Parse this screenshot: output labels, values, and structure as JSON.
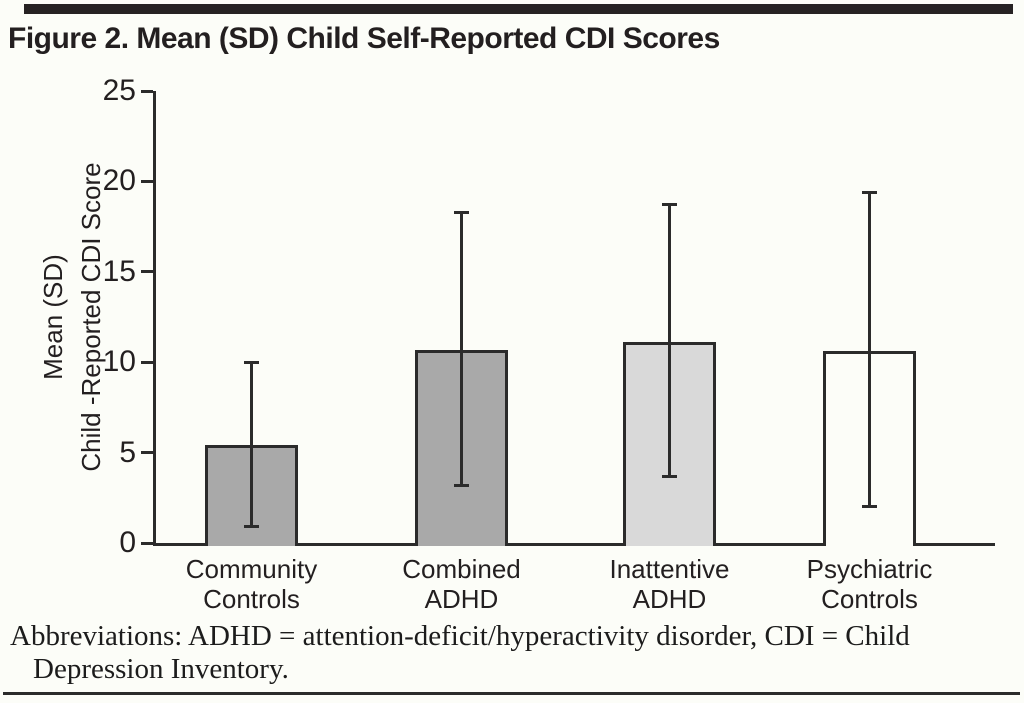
{
  "figure": {
    "title": "Figure 2. Mean (SD) Child Self-Reported CDI Scores"
  },
  "footnote": {
    "line1": "Abbreviations: ADHD = attention-deficit/hyperactivity disorder, CDI = Child",
    "line2": "Depression Inventory."
  },
  "colors": {
    "background": "#fcfdf8",
    "ink": "#231f20",
    "axis": "#2b2b2b",
    "bar_medium_gray": "#a9a9a9",
    "bar_light_gray": "#d9d9d9",
    "bar_white": "#fcfdf8"
  },
  "chart_data": {
    "type": "bar",
    "title": "Figure 2. Mean (SD) Child Self-Reported CDI Scores",
    "ylabel_lines": [
      "Mean (SD)",
      "Child -Reported CDI Score"
    ],
    "xlabel": "",
    "ylim": [
      0,
      25
    ],
    "yticks": [
      0,
      5,
      10,
      15,
      20,
      25
    ],
    "grid": false,
    "legend": false,
    "error_bars": "standard deviation, symmetric caps",
    "categories": [
      "Community Controls",
      "Combined ADHD",
      "Inattentive ADHD",
      "Psychiatric Controls"
    ],
    "bars": [
      {
        "label_lines": [
          "Community",
          "Controls"
        ],
        "mean": 5.4,
        "err_low": 0.9,
        "err_high": 10.0,
        "fill": "#a9a9a9"
      },
      {
        "label_lines": [
          "Combined",
          "ADHD"
        ],
        "mean": 10.7,
        "err_low": 3.2,
        "err_high": 18.3,
        "fill": "#a9a9a9"
      },
      {
        "label_lines": [
          "Inattentive",
          "ADHD"
        ],
        "mean": 11.1,
        "err_low": 3.7,
        "err_high": 18.7,
        "fill": "#d9d9d9"
      },
      {
        "label_lines": [
          "Psychiatric",
          "Controls"
        ],
        "mean": 10.6,
        "err_low": 2.0,
        "err_high": 19.4,
        "fill": "#fcfdf8"
      }
    ]
  }
}
